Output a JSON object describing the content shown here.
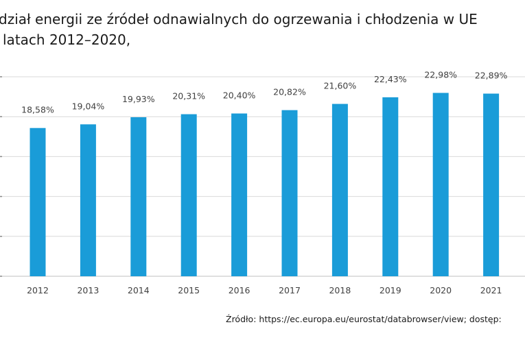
{
  "title": {
    "line1": "dział energii ze źródeł odnawialnych do ogrzewania i chłodzenia w UE",
    "line2": "latach 2012–2020,"
  },
  "source": "Źródło: https://ec.europa.eu/eurostat/databrowser/view; dostęp:",
  "chart_data": {
    "type": "bar",
    "title": "dział energii ze źródeł odnawialnych do ogrzewania i chłodzenia w UE latach 2012–2020,",
    "xlabel": "",
    "ylabel": "",
    "categories": [
      "2012",
      "2013",
      "2014",
      "2015",
      "2016",
      "2017",
      "2018",
      "2019",
      "2020",
      "2021"
    ],
    "values": [
      18.58,
      19.04,
      19.93,
      20.31,
      20.4,
      20.82,
      21.6,
      22.43,
      22.98,
      22.89
    ],
    "data_labels": [
      "18,58%",
      "19,04%",
      "19,93%",
      "20,31%",
      "20,40%",
      "20,82%",
      "21,60%",
      "22,43%",
      "22,98%",
      "22,89%"
    ],
    "ylim": [
      0,
      25
    ],
    "grid": true,
    "legend": "none",
    "bar_color": "#1a9cd8",
    "gridline_color": "#d9d9d9"
  }
}
